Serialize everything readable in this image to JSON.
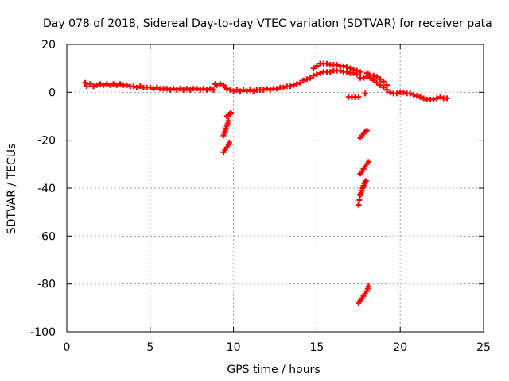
{
  "chart_data": {
    "type": "scatter",
    "title": "Day 078 of 2018, Sidereal Day-to-day VTEC variation (SDTVAR) for receiver pata",
    "xlabel": "GPS time / hours",
    "ylabel": "SDTVAR / TECUs",
    "xlim": [
      0,
      25
    ],
    "ylim": [
      -100,
      20
    ],
    "xticks": [
      0,
      5,
      10,
      15,
      20,
      25
    ],
    "yticks": [
      -100,
      -80,
      -60,
      -40,
      -20,
      0,
      20
    ],
    "grid": true,
    "marker": "+",
    "colors": {
      "series": "#ff0000",
      "grid": "#a0a0a0",
      "axis": "#000000"
    },
    "series": [
      {
        "name": "main trace",
        "points": [
          [
            1.1,
            4.0
          ],
          [
            1.2,
            2.5
          ],
          [
            1.4,
            3.5
          ],
          [
            1.6,
            2.5
          ],
          [
            1.8,
            3.0
          ],
          [
            2.0,
            3.5
          ],
          [
            2.2,
            3.0
          ],
          [
            2.4,
            3.5
          ],
          [
            2.6,
            3.0
          ],
          [
            2.8,
            3.5
          ],
          [
            3.0,
            3.0
          ],
          [
            3.2,
            3.5
          ],
          [
            3.4,
            3.0
          ],
          [
            3.6,
            3.0
          ],
          [
            3.8,
            2.5
          ],
          [
            4.0,
            2.5
          ],
          [
            4.2,
            2.0
          ],
          [
            4.4,
            2.5
          ],
          [
            4.6,
            2.0
          ],
          [
            4.8,
            2.0
          ],
          [
            5.0,
            2.0
          ],
          [
            5.2,
            1.5
          ],
          [
            5.4,
            2.0
          ],
          [
            5.6,
            1.5
          ],
          [
            5.8,
            1.5
          ],
          [
            6.0,
            1.5
          ],
          [
            6.2,
            1.0
          ],
          [
            6.4,
            1.5
          ],
          [
            6.6,
            1.0
          ],
          [
            6.8,
            1.5
          ],
          [
            7.0,
            1.0
          ],
          [
            7.2,
            1.5
          ],
          [
            7.4,
            1.0
          ],
          [
            7.6,
            1.5
          ],
          [
            7.8,
            1.5
          ],
          [
            8.0,
            1.0
          ],
          [
            8.2,
            1.5
          ],
          [
            8.4,
            1.0
          ],
          [
            8.6,
            1.5
          ],
          [
            8.8,
            1.0
          ],
          [
            8.9,
            3.5
          ],
          [
            9.0,
            3.0
          ],
          [
            9.2,
            3.5
          ],
          [
            9.4,
            3.0
          ],
          [
            9.5,
            2.0
          ],
          [
            9.6,
            1.5
          ],
          [
            9.8,
            1.0
          ],
          [
            10.0,
            0.5
          ],
          [
            10.2,
            1.0
          ],
          [
            10.4,
            0.5
          ],
          [
            10.6,
            1.0
          ],
          [
            10.8,
            0.5
          ],
          [
            11.0,
            1.0
          ],
          [
            11.2,
            0.5
          ],
          [
            11.4,
            1.0
          ],
          [
            11.6,
            1.0
          ],
          [
            11.8,
            1.0
          ],
          [
            12.0,
            1.5
          ],
          [
            12.2,
            1.0
          ],
          [
            12.4,
            1.5
          ],
          [
            12.6,
            1.5
          ],
          [
            12.8,
            2.0
          ],
          [
            13.0,
            2.0
          ],
          [
            13.2,
            2.5
          ],
          [
            13.4,
            2.5
          ],
          [
            13.6,
            3.0
          ],
          [
            13.8,
            3.5
          ],
          [
            14.0,
            4.0
          ],
          [
            14.2,
            5.0
          ],
          [
            14.4,
            5.5
          ],
          [
            14.6,
            6.0
          ],
          [
            14.8,
            7.0
          ],
          [
            15.0,
            7.5
          ],
          [
            15.2,
            8.0
          ],
          [
            15.4,
            8.5
          ],
          [
            15.6,
            8.5
          ],
          [
            15.8,
            8.5
          ],
          [
            16.0,
            9.0
          ],
          [
            16.2,
            9.0
          ],
          [
            16.4,
            9.0
          ],
          [
            16.6,
            8.5
          ],
          [
            16.8,
            8.5
          ],
          [
            17.0,
            8.0
          ],
          [
            17.2,
            8.0
          ],
          [
            17.4,
            7.5
          ],
          [
            17.6,
            6.0
          ],
          [
            17.8,
            6.0
          ],
          [
            18.0,
            6.5
          ],
          [
            18.2,
            6.0
          ],
          [
            18.4,
            5.0
          ],
          [
            18.6,
            4.0
          ],
          [
            18.8,
            3.0
          ],
          [
            19.0,
            2.0
          ],
          [
            19.2,
            1.0
          ],
          [
            19.4,
            0.0
          ],
          [
            19.6,
            -0.5
          ],
          [
            19.8,
            -0.5
          ],
          [
            20.0,
            0.0
          ],
          [
            20.2,
            0.0
          ],
          [
            20.4,
            -0.5
          ],
          [
            20.6,
            -0.5
          ],
          [
            20.8,
            -1.0
          ],
          [
            21.0,
            -1.5
          ],
          [
            21.2,
            -2.0
          ],
          [
            21.4,
            -2.5
          ],
          [
            21.6,
            -3.0
          ],
          [
            21.8,
            -3.0
          ],
          [
            22.0,
            -3.0
          ],
          [
            22.2,
            -2.5
          ],
          [
            22.4,
            -2.0
          ],
          [
            22.6,
            -2.5
          ],
          [
            22.8,
            -2.5
          ]
        ]
      },
      {
        "name": "upper arc",
        "points": [
          [
            14.8,
            10.0
          ],
          [
            15.0,
            11.0
          ],
          [
            15.2,
            12.0
          ],
          [
            15.4,
            12.0
          ],
          [
            15.6,
            12.0
          ],
          [
            15.8,
            11.5
          ],
          [
            16.0,
            11.5
          ],
          [
            16.2,
            11.5
          ],
          [
            16.4,
            11.0
          ],
          [
            16.6,
            11.0
          ],
          [
            16.8,
            10.5
          ],
          [
            17.0,
            10.0
          ],
          [
            17.2,
            9.5
          ],
          [
            17.4,
            9.0
          ],
          [
            17.6,
            8.5
          ]
        ]
      },
      {
        "name": "late branch",
        "points": [
          [
            18.0,
            8.0
          ],
          [
            18.1,
            7.5
          ],
          [
            18.2,
            7.0
          ],
          [
            18.4,
            7.0
          ],
          [
            18.6,
            6.5
          ],
          [
            18.8,
            5.5
          ],
          [
            19.0,
            4.5
          ],
          [
            19.2,
            3.0
          ]
        ]
      },
      {
        "name": "offset segment",
        "points": [
          [
            16.9,
            -2.0
          ],
          [
            17.1,
            -2.0
          ],
          [
            17.3,
            -2.0
          ],
          [
            17.5,
            -2.0
          ],
          [
            17.9,
            -0.5
          ]
        ]
      },
      {
        "name": "drop near 9.6h",
        "points": [
          [
            9.4,
            -25.0
          ],
          [
            9.5,
            -24.0
          ],
          [
            9.6,
            -23.0
          ],
          [
            9.7,
            -22.0
          ],
          [
            9.75,
            -21.0
          ],
          [
            9.4,
            -18.0
          ],
          [
            9.45,
            -17.0
          ],
          [
            9.5,
            -16.0
          ],
          [
            9.55,
            -15.0
          ],
          [
            9.6,
            -14.0
          ],
          [
            9.65,
            -13.0
          ],
          [
            9.7,
            -12.0
          ],
          [
            9.6,
            -10.0
          ],
          [
            9.7,
            -9.5
          ],
          [
            9.8,
            -9.0
          ],
          [
            9.85,
            -8.5
          ]
        ]
      },
      {
        "name": "drop near 18h",
        "points": [
          [
            17.6,
            -19.0
          ],
          [
            17.7,
            -18.0
          ],
          [
            17.8,
            -17.0
          ],
          [
            17.9,
            -16.5
          ],
          [
            18.0,
            -16.0
          ],
          [
            17.6,
            -34.0
          ],
          [
            17.7,
            -33.0
          ],
          [
            17.8,
            -32.0
          ],
          [
            17.9,
            -31.0
          ],
          [
            18.0,
            -30.0
          ],
          [
            18.1,
            -29.0
          ],
          [
            17.5,
            -47.0
          ],
          [
            17.55,
            -45.0
          ],
          [
            17.6,
            -43.0
          ],
          [
            17.65,
            -42.0
          ],
          [
            17.7,
            -41.0
          ],
          [
            17.75,
            -40.0
          ],
          [
            17.8,
            -39.0
          ],
          [
            17.85,
            -38.0
          ],
          [
            17.9,
            -37.5
          ],
          [
            17.95,
            -37.0
          ],
          [
            17.5,
            -88.0
          ],
          [
            17.6,
            -87.0
          ],
          [
            17.7,
            -86.0
          ],
          [
            17.8,
            -85.0
          ],
          [
            17.9,
            -84.0
          ],
          [
            18.0,
            -83.0
          ],
          [
            18.05,
            -82.0
          ],
          [
            18.1,
            -81.0
          ]
        ]
      }
    ]
  }
}
